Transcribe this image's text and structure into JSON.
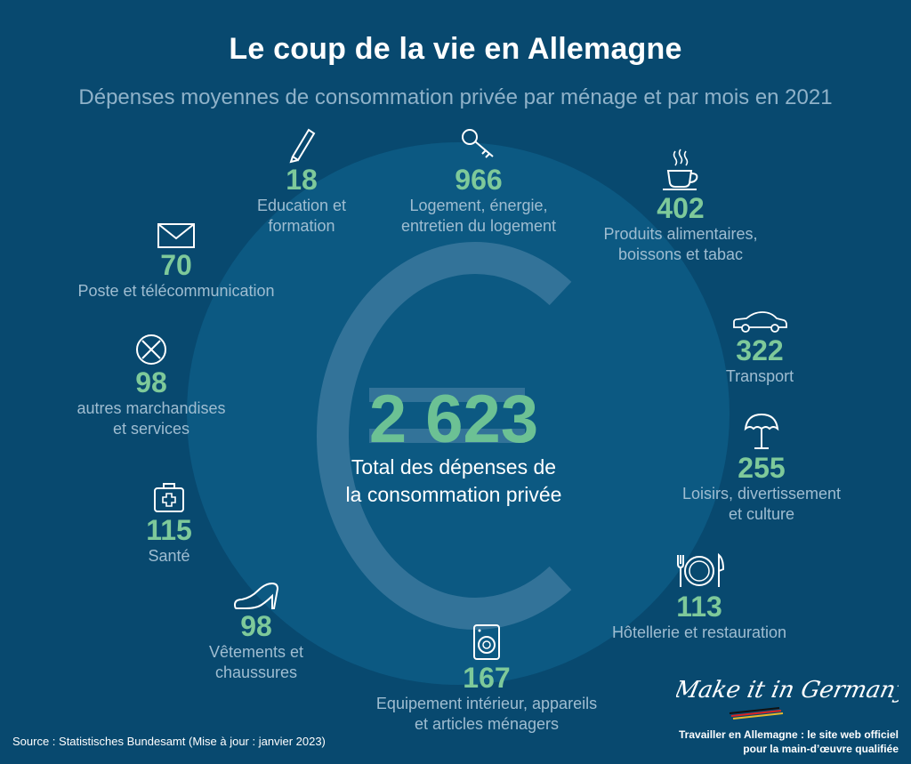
{
  "header": {
    "title": "Le coup de la vie en Allemagne",
    "subtitle": "Dépenses moyennes de consommation privée par ménage et par mois en 2021"
  },
  "total": {
    "value": "2 623",
    "label_line1": "Total des dépenses de",
    "label_line2": "la consommation privée"
  },
  "categories": [
    {
      "icon": "pencil-icon",
      "value": "18",
      "label_line1": "Education et",
      "label_line2": "formation"
    },
    {
      "icon": "key-icon",
      "value": "966",
      "label_line1": "Logement, énergie,",
      "label_line2": "entretien du logement"
    },
    {
      "icon": "coffee-cup-icon",
      "value": "402",
      "label_line1": "Produits alimentaires,",
      "label_line2": "boissons et tabac"
    },
    {
      "icon": "car-icon",
      "value": "322",
      "label_line1": "Transport",
      "label_line2": ""
    },
    {
      "icon": "beach-umbrella-icon",
      "value": "255",
      "label_line1": "Loisirs, divertissement",
      "label_line2": "et culture"
    },
    {
      "icon": "plate-cutlery-icon",
      "value": "113",
      "label_line1": "Hôtellerie et restauration",
      "label_line2": ""
    },
    {
      "icon": "washing-machine-icon",
      "value": "167",
      "label_line1": "Equipement intérieur, appareils",
      "label_line2": "et articles ménagers"
    },
    {
      "icon": "high-heel-shoe-icon",
      "value": "98",
      "label_line1": "Vêtements et",
      "label_line2": "chaussures"
    },
    {
      "icon": "first-aid-kit-icon",
      "value": "115",
      "label_line1": "Santé",
      "label_line2": ""
    },
    {
      "icon": "circle-x-icon",
      "value": "98",
      "label_line1": "autres marchandises",
      "label_line2": "et services"
    },
    {
      "icon": "envelope-icon",
      "value": "70",
      "label_line1": "Poste et télécommunication",
      "label_line2": ""
    }
  ],
  "footer": {
    "source": "Source : Statistisches Bundesamt (Mise à jour : janvier 2023)",
    "brand": "Make it in Germany",
    "tagline_line1": "Travailler en Allemagne : le site web officiel",
    "tagline_line2": "pour la main-d’œuvre qualifiée"
  },
  "colors": {
    "background": "#08496f",
    "circle": "#0c5982",
    "accent_green": "#7ec99a",
    "label_blue": "#9fbdd1"
  }
}
